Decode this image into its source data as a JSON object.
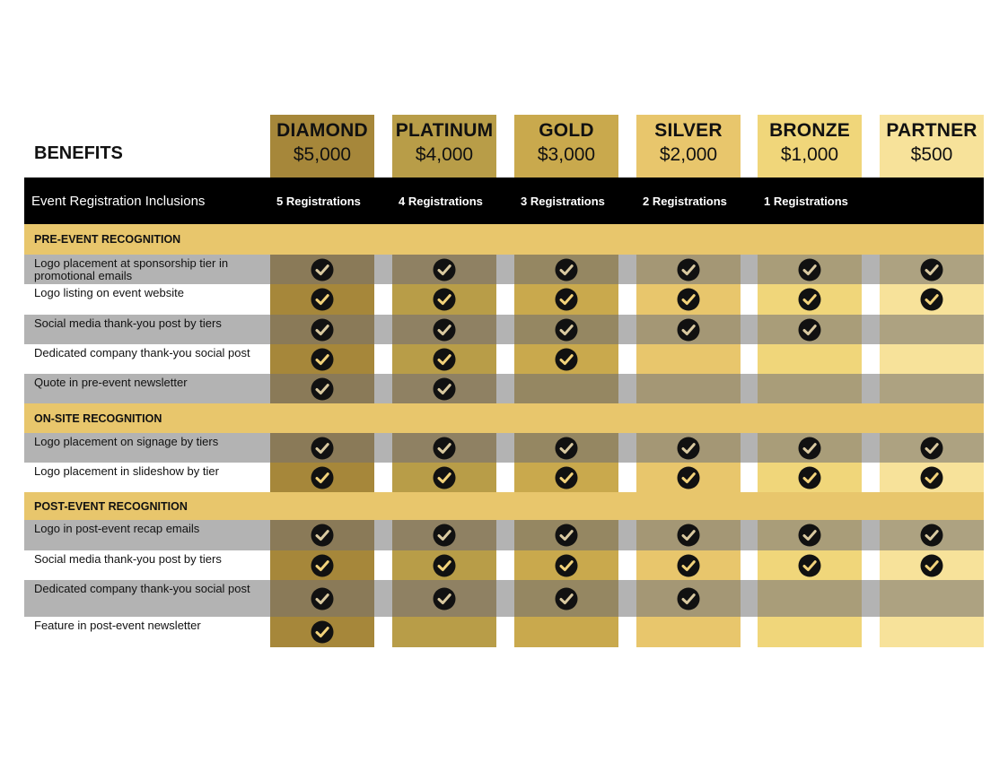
{
  "benefits_title": "BENEFITS",
  "tiers": [
    {
      "name": "DIAMOND",
      "price": "$5,000",
      "head_color": "#a6873a",
      "cell_color": "#a6873a",
      "cell_dark": "#8a7a58"
    },
    {
      "name": "PLATINUM",
      "price": "$4,000",
      "head_color": "#b89d48",
      "cell_color": "#b89d48",
      "cell_dark": "#8f8163"
    },
    {
      "name": "GOLD",
      "price": "$3,000",
      "head_color": "#c9a94d",
      "cell_color": "#c9a94d",
      "cell_dark": "#958762"
    },
    {
      "name": "SILVER",
      "price": "$2,000",
      "head_color": "#e8c66c",
      "cell_color": "#e8c66c",
      "cell_dark": "#a49775"
    },
    {
      "name": "BRONZE",
      "price": "$1,000",
      "head_color": "#f0d67a",
      "cell_color": "#f0d67a",
      "cell_dark": "#a99d79"
    },
    {
      "name": "PARTNER",
      "price": "$500",
      "head_color": "#f7e29a",
      "cell_color": "#f7e29a",
      "cell_dark": "#ada281"
    }
  ],
  "registration": {
    "title": "Event Registration Inclusions",
    "values": [
      "5 Registrations",
      "4 Registrations",
      "3 Registrations",
      "2 Registrations",
      "1 Registrations",
      ""
    ]
  },
  "sections": [
    {
      "title": "PRE-EVENT RECOGNITION",
      "rows": [
        {
          "label": "Logo placement at sponsorship tier in promotional emails",
          "checks": [
            true,
            true,
            true,
            true,
            true,
            true
          ]
        },
        {
          "label": "Logo listing on event website",
          "checks": [
            true,
            true,
            true,
            true,
            true,
            true
          ]
        },
        {
          "label": "Social media thank-you post by tiers",
          "checks": [
            true,
            true,
            true,
            true,
            true,
            false
          ]
        },
        {
          "label": "Dedicated company thank-you social post",
          "checks": [
            true,
            true,
            true,
            false,
            false,
            false
          ]
        },
        {
          "label": "Quote in pre-event newsletter",
          "checks": [
            true,
            true,
            false,
            false,
            false,
            false
          ]
        }
      ]
    },
    {
      "title": "ON-SITE RECOGNITION",
      "rows": [
        {
          "label": "Logo placement on signage by tiers",
          "checks": [
            true,
            true,
            true,
            true,
            true,
            true
          ]
        },
        {
          "label": "Logo placement in slideshow by tier",
          "checks": [
            true,
            true,
            true,
            true,
            true,
            true
          ]
        }
      ]
    },
    {
      "title": "POST-EVENT RECOGNITION",
      "rows": [
        {
          "label": "Logo in post-event recap emails",
          "checks": [
            true,
            true,
            true,
            true,
            true,
            true
          ]
        },
        {
          "label": "Social media thank-you post by tiers",
          "checks": [
            true,
            true,
            true,
            true,
            true,
            true
          ]
        },
        {
          "label": "Dedicated company thank-you social post",
          "checks": [
            true,
            true,
            true,
            true,
            false,
            false
          ]
        },
        {
          "label": "Feature in post-event newsletter",
          "checks": [
            true,
            false,
            false,
            false,
            false,
            false
          ]
        }
      ]
    }
  ],
  "colors": {
    "section_band": "#e8c66c",
    "gray_row": "#b3b3b3",
    "white_row": "#ffffff",
    "registration_band": "#000000",
    "check_fill": "#111111",
    "check_mark_light": "#f2d27a",
    "check_mark_dark": "#d9c9a0"
  },
  "icons": {
    "check": "check-circle-icon"
  }
}
